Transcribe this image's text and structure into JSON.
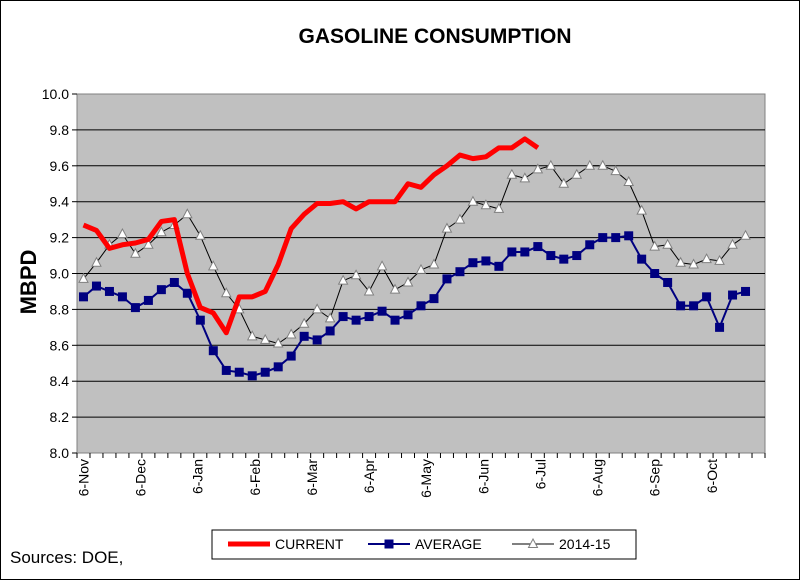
{
  "chart_data": {
    "type": "line",
    "title": "GASOLINE CONSUMPTION",
    "ylabel": "MBPD",
    "xlabel": "",
    "ylim": [
      8.0,
      10.0
    ],
    "yticks": [
      "8.0",
      "8.2",
      "8.4",
      "8.6",
      "8.8",
      "9.0",
      "9.2",
      "9.4",
      "9.6",
      "9.8",
      "10.0"
    ],
    "xticks": [
      "6-Nov",
      "6-Dec",
      "6-Jan",
      "6-Feb",
      "6-Mar",
      "6-Apr",
      "6-May",
      "6-Jun",
      "6-Jul",
      "6-Aug",
      "6-Sep",
      "6-Oct"
    ],
    "n_weeks": 53,
    "grid": "horizontal",
    "legend_position": "bottom",
    "source": "Sources:  DOE,",
    "series": [
      {
        "name": "CURRENT",
        "color": "#ff0000",
        "marker": "none",
        "values": [
          9.27,
          9.24,
          9.14,
          9.16,
          9.17,
          9.19,
          9.29,
          9.3,
          9.0,
          8.81,
          8.78,
          8.67,
          8.87,
          8.87,
          8.9,
          9.05,
          9.25,
          9.33,
          9.39,
          9.39,
          9.4,
          9.36,
          9.4,
          9.4,
          9.4,
          9.5,
          9.48,
          9.55,
          9.6,
          9.66,
          9.64,
          9.65,
          9.7,
          9.7,
          9.75,
          9.7
        ]
      },
      {
        "name": "AVERAGE",
        "color": "#000080",
        "marker": "square",
        "values": [
          8.87,
          8.93,
          8.9,
          8.87,
          8.81,
          8.85,
          8.91,
          8.95,
          8.89,
          8.74,
          8.57,
          8.46,
          8.45,
          8.43,
          8.45,
          8.48,
          8.54,
          8.65,
          8.63,
          8.68,
          8.76,
          8.74,
          8.76,
          8.79,
          8.74,
          8.77,
          8.82,
          8.86,
          8.97,
          9.01,
          9.06,
          9.07,
          9.04,
          9.12,
          9.12,
          9.15,
          9.1,
          9.08,
          9.1,
          9.16,
          9.2,
          9.2,
          9.21,
          9.08,
          9.0,
          8.95,
          8.82,
          8.82,
          8.87,
          8.7,
          8.88,
          8.9
        ]
      },
      {
        "name": "2014-15",
        "color": "#000000",
        "marker": "triangle",
        "values": [
          8.97,
          9.06,
          9.16,
          9.22,
          9.11,
          9.16,
          9.23,
          9.27,
          9.33,
          9.21,
          9.04,
          8.89,
          8.8,
          8.65,
          8.63,
          8.61,
          8.66,
          8.72,
          8.8,
          8.75,
          8.96,
          8.99,
          8.9,
          9.04,
          8.91,
          8.95,
          9.02,
          9.05,
          9.25,
          9.3,
          9.4,
          9.38,
          9.36,
          9.55,
          9.53,
          9.58,
          9.6,
          9.5,
          9.55,
          9.6,
          9.6,
          9.57,
          9.51,
          9.35,
          9.15,
          9.16,
          9.06,
          9.05,
          9.08,
          9.07,
          9.16,
          9.21
        ]
      }
    ]
  }
}
